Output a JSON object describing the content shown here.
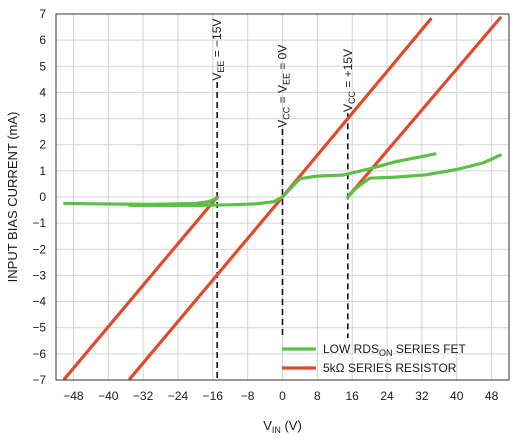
{
  "chart_data": {
    "type": "line",
    "xlabel": {
      "main": "V",
      "sub": "IN",
      "unit": " (V)"
    },
    "ylabel": "INPUT BIAS CURRENT (mA)",
    "xlim": [
      -52,
      52
    ],
    "ylim": [
      -7,
      7
    ],
    "xticks": [
      -48,
      -40,
      -32,
      -24,
      -16,
      -8,
      0,
      8,
      16,
      24,
      32,
      40,
      48
    ],
    "xtick_labels": [
      "−48",
      "−40",
      "−32",
      "−24",
      "−16",
      "−8",
      "0",
      "8",
      "16",
      "24",
      "32",
      "40",
      "48"
    ],
    "yticks": [
      -7,
      -6,
      -5,
      -4,
      -3,
      -2,
      -1,
      0,
      1,
      2,
      3,
      4,
      5,
      6,
      7
    ],
    "ytick_labels": [
      "−7",
      "−6",
      "−5",
      "−4",
      "−3",
      "−2",
      "−1",
      "0",
      "1",
      "2",
      "3",
      "4",
      "5",
      "6",
      "7"
    ],
    "grid": true,
    "legend_position": "bottom-right",
    "series": [
      {
        "name": "5kΩ SERIES RESISTOR",
        "color": "#e04a2c",
        "segments": [
          [
            [
              -50,
              -6.95
            ],
            [
              -15,
              0.0
            ]
          ],
          [
            [
              -35,
              -6.95
            ],
            [
              0,
              0.0
            ],
            [
              34,
              6.8
            ]
          ],
          [
            [
              15,
              0.0
            ],
            [
              50,
              6.85
            ]
          ]
        ]
      },
      {
        "name": "LOW RDS_ON SERIES FET",
        "color": "#5cbf47",
        "segments": [
          [
            [
              -50,
              -0.25
            ],
            [
              -36,
              -0.27
            ],
            [
              -30,
              -0.28
            ],
            [
              -20,
              -0.25
            ],
            [
              -17,
              -0.18
            ],
            [
              -15,
              -0.05
            ]
          ],
          [
            [
              -35,
              -0.32
            ],
            [
              -28,
              -0.32
            ],
            [
              -20,
              -0.32
            ],
            [
              -12,
              -0.3
            ],
            [
              -6,
              -0.26
            ],
            [
              -2,
              -0.18
            ],
            [
              0,
              0.0
            ],
            [
              2,
              0.35
            ],
            [
              4,
              0.7
            ],
            [
              8,
              0.8
            ],
            [
              14,
              0.84
            ],
            [
              20,
              1.08
            ],
            [
              26,
              1.35
            ],
            [
              35,
              1.65
            ]
          ],
          [
            [
              15,
              0.0
            ],
            [
              17,
              0.35
            ],
            [
              20,
              0.72
            ],
            [
              26,
              0.76
            ],
            [
              33,
              0.85
            ],
            [
              40,
              1.05
            ],
            [
              46,
              1.3
            ],
            [
              50,
              1.6
            ]
          ]
        ]
      }
    ],
    "vlines": [
      {
        "x": -15,
        "ymin": -7,
        "ymax": 4.4
      },
      {
        "x": 0,
        "ymin": -5.4,
        "ymax": 2.6
      },
      {
        "x": 15,
        "ymin": -5.4,
        "ymax": 3.2
      }
    ],
    "annotations": [
      {
        "x": -15,
        "y_start": 4.45,
        "parts": [
          [
            "V",
            ""
          ],
          [
            "EE",
            "sub"
          ],
          [
            " = −15V",
            ""
          ]
        ]
      },
      {
        "x": 0,
        "y_start": 2.65,
        "parts": [
          [
            "V",
            ""
          ],
          [
            "CC",
            "sub"
          ],
          [
            " = V",
            ""
          ],
          [
            "EE",
            "sub"
          ],
          [
            " = 0V",
            ""
          ]
        ]
      },
      {
        "x": 15,
        "y_start": 3.25,
        "parts": [
          [
            "V",
            ""
          ],
          [
            "CC",
            "sub"
          ],
          [
            " = +15V",
            ""
          ]
        ]
      }
    ],
    "legend": [
      {
        "parts": [
          [
            "LOW RDS",
            ""
          ],
          [
            "ON",
            "sub"
          ],
          [
            " SERIES FET",
            ""
          ]
        ],
        "color": "#5cbf47"
      },
      {
        "parts": [
          [
            "5kΩ SERIES RESISTOR",
            ""
          ]
        ],
        "color": "#e04a2c"
      }
    ]
  }
}
